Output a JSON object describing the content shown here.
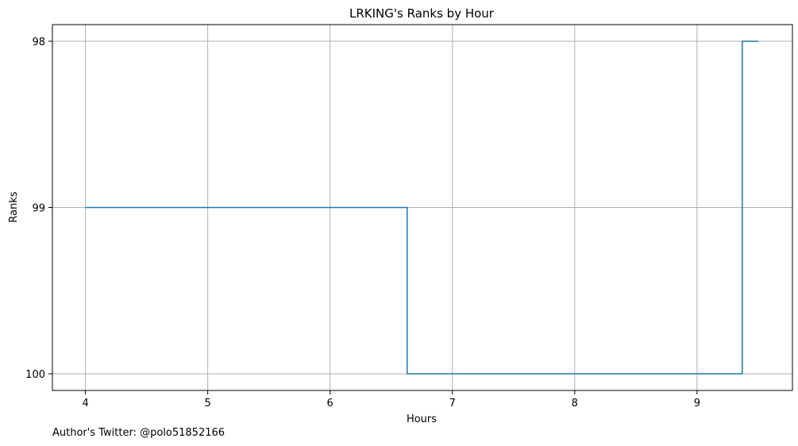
{
  "chart_data": {
    "type": "line",
    "drawstyle": "steps-post",
    "title": "LRKING's Ranks by Hour",
    "xlabel": "Hours",
    "ylabel": "Ranks",
    "xlim": [
      3.73,
      9.78
    ],
    "ylim_inverted": [
      100.1,
      97.9
    ],
    "x_ticks": [
      4,
      5,
      6,
      7,
      8,
      9
    ],
    "x_tick_labels": [
      "4",
      "5",
      "6",
      "7",
      "8",
      "9"
    ],
    "y_ticks": [
      98,
      99,
      100
    ],
    "y_tick_labels": [
      "98",
      "99",
      "100"
    ],
    "grid": true,
    "series": [
      {
        "name": "rank",
        "color": "#1f77b4",
        "x": [
          4.0,
          6.63,
          9.37,
          9.5
        ],
        "y": [
          99,
          100,
          98,
          98
        ]
      }
    ]
  },
  "footer": {
    "author_text": "Author's Twitter: @polo51852166"
  }
}
